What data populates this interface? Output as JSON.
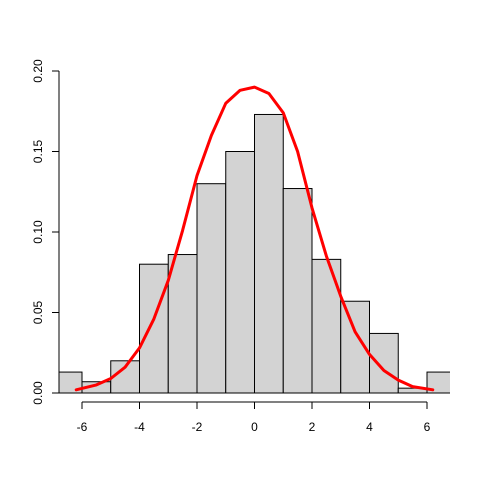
{
  "chart_data": {
    "type": "bar",
    "title": "",
    "xlabel": "",
    "ylabel": "",
    "xlim": [
      -6.8,
      6.8
    ],
    "ylim": [
      0,
      0.2
    ],
    "grid": false,
    "bar_fill": "#d3d3d3",
    "bar_stroke": "#000000",
    "x_ticks": [
      -6,
      -4,
      -2,
      0,
      2,
      4,
      6
    ],
    "x_tick_labels": [
      "-6",
      "-4",
      "-2",
      "0",
      "2",
      "4",
      "6"
    ],
    "y_ticks": [
      0,
      0.05,
      0.1,
      0.15,
      0.2
    ],
    "y_tick_labels": [
      "0.00",
      "0.05",
      "0.10",
      "0.15",
      "0.20"
    ],
    "bins": [
      {
        "start": -7,
        "end": -6,
        "value": 0.013
      },
      {
        "start": -6,
        "end": -5,
        "value": 0.007
      },
      {
        "start": -5,
        "end": -4,
        "value": 0.02
      },
      {
        "start": -4,
        "end": -3,
        "value": 0.08
      },
      {
        "start": -3,
        "end": -2,
        "value": 0.086
      },
      {
        "start": -2,
        "end": -1,
        "value": 0.13
      },
      {
        "start": -1,
        "end": 0,
        "value": 0.15
      },
      {
        "start": 0,
        "end": 1,
        "value": 0.173
      },
      {
        "start": 1,
        "end": 2,
        "value": 0.127
      },
      {
        "start": 2,
        "end": 3,
        "value": 0.083
      },
      {
        "start": 3,
        "end": 4,
        "value": 0.057
      },
      {
        "start": 4,
        "end": 5,
        "value": 0.037
      },
      {
        "start": 5,
        "end": 6,
        "value": 0.003
      },
      {
        "start": 6,
        "end": 7,
        "value": 0.013
      }
    ],
    "density_curve": {
      "type": "line",
      "color": "#ff0000",
      "x": [
        -6.2,
        -5.5,
        -5.0,
        -4.5,
        -4.0,
        -3.5,
        -3.0,
        -2.5,
        -2.0,
        -1.5,
        -1.0,
        -0.5,
        0.0,
        0.5,
        1.0,
        1.5,
        2.0,
        2.5,
        3.0,
        3.5,
        4.0,
        4.5,
        5.0,
        5.5,
        6.2
      ],
      "y": [
        0.002,
        0.005,
        0.009,
        0.016,
        0.028,
        0.046,
        0.07,
        0.101,
        0.135,
        0.16,
        0.18,
        0.188,
        0.19,
        0.186,
        0.174,
        0.15,
        0.115,
        0.085,
        0.06,
        0.038,
        0.024,
        0.014,
        0.008,
        0.004,
        0.002
      ]
    }
  }
}
